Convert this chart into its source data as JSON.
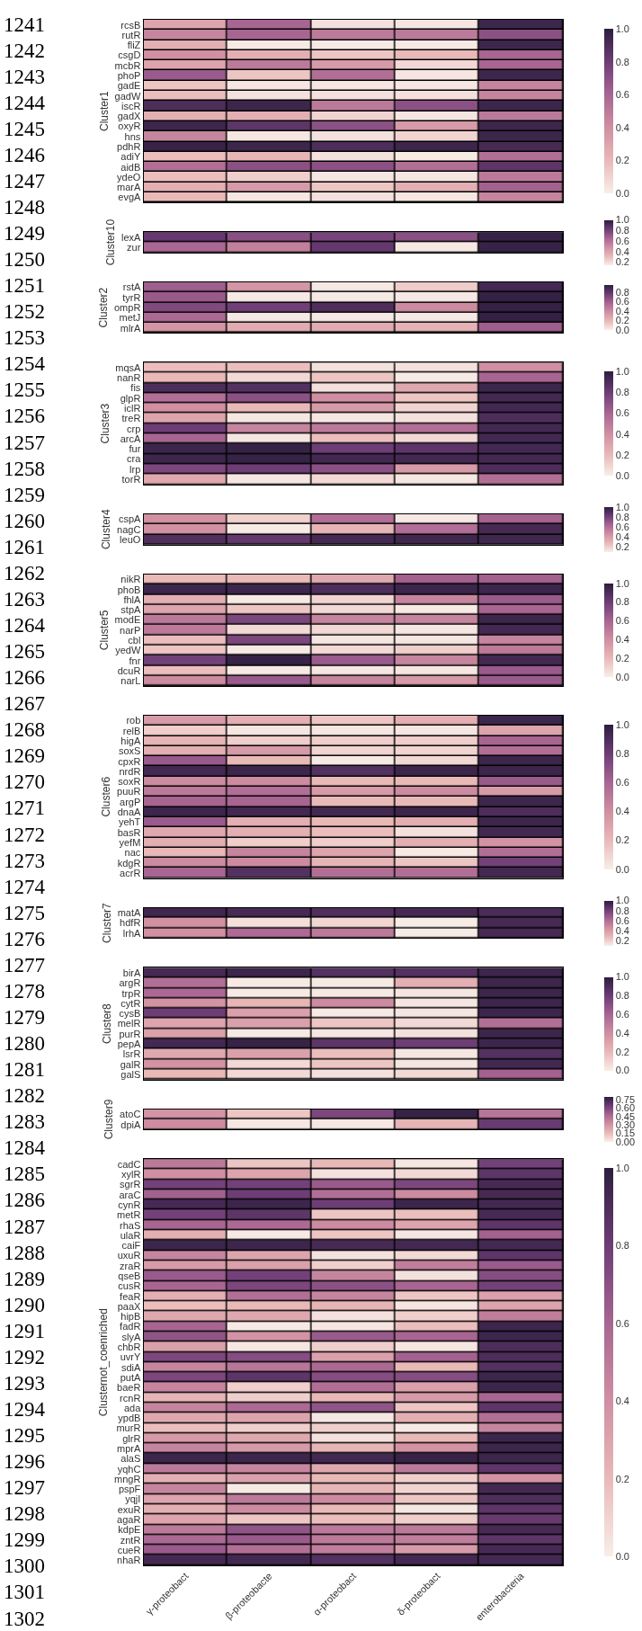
{
  "chart_data": [
    {
      "type": "heatmap",
      "ylabel": "Cluster1",
      "tick_labels": "y",
      "categories": [
        null,
        null,
        null,
        null,
        null
      ],
      "annotations": [
        "1241",
        "1242",
        "1243",
        "1244",
        "1245",
        "1246",
        "1247",
        "1248",
        "1249",
        "1250",
        "1251",
        "1252",
        "1253",
        "1254",
        "1255",
        "1256",
        "1257",
        "1258",
        "1259",
        "1260",
        "1261",
        "1262",
        "1263",
        "1264",
        "1265",
        "1266",
        "1267",
        "1268",
        "1269",
        "1270",
        "1271",
        "1272",
        "1273",
        "1274",
        "1275",
        "1276",
        "1277",
        "1278",
        "1279",
        "1280",
        "1281",
        "1282",
        "1283",
        "1284",
        "1285",
        "1286",
        "1287",
        "1288",
        "1289",
        "1290",
        "1291",
        "1292",
        "1293",
        "1294",
        "1295",
        "1296",
        "1297",
        "1298",
        "1299",
        "1300",
        "1301",
        "1302"
      ],
      "y_categories": [
        "rcsB",
        "rutR",
        "fliZ",
        "csgD",
        "mcbR",
        "phoP",
        "gadE",
        "gadW",
        "iscR",
        "gadX",
        "oxyR",
        "hns",
        "pdhR",
        "adiY",
        "aidB",
        "ydeO",
        "marA",
        "evgA"
      ],
      "cells": [
        [
          0.3,
          0.6,
          0.05,
          0.03,
          0.95
        ],
        [
          0.45,
          0.6,
          0.5,
          0.5,
          0.7
        ],
        [
          0.25,
          0.02,
          0.02,
          0.02,
          0.95
        ],
        [
          0.4,
          0.25,
          0.15,
          0.2,
          0.6
        ],
        [
          0.3,
          0.5,
          0.35,
          0.08,
          0.6
        ],
        [
          0.65,
          0.15,
          0.55,
          0.03,
          0.95
        ],
        [
          0.15,
          0.03,
          0.03,
          0.03,
          0.45
        ],
        [
          0.18,
          0.05,
          0.05,
          0.05,
          0.45
        ],
        [
          0.9,
          0.95,
          0.5,
          0.7,
          0.95
        ],
        [
          0.25,
          0.25,
          0.1,
          0.03,
          0.5
        ],
        [
          0.95,
          0.85,
          0.7,
          0.35,
          0.95
        ],
        [
          0.45,
          0.03,
          0.05,
          0.1,
          0.95
        ],
        [
          0.97,
          0.95,
          0.9,
          0.95,
          0.92
        ],
        [
          0.18,
          0.22,
          0.05,
          0.02,
          0.55
        ],
        [
          0.55,
          0.7,
          0.7,
          0.55,
          0.85
        ],
        [
          0.18,
          0.12,
          0.03,
          0.03,
          0.5
        ],
        [
          0.25,
          0.35,
          0.15,
          0.25,
          0.62
        ],
        [
          0.2,
          0.03,
          0.05,
          0.03,
          0.45
        ]
      ],
      "clim": [
        0,
        1.0
      ],
      "cticks": [
        {
          "value": 0,
          "label": "0.0"
        },
        {
          "value": 0.2,
          "label": "0.2"
        },
        {
          "value": 0.4,
          "label": "0.4"
        },
        {
          "value": 0.6,
          "label": "0.6"
        },
        {
          "value": 0.8,
          "label": "0.8"
        },
        {
          "value": 1.0,
          "label": "1.0"
        }
      ]
    },
    {
      "type": "heatmap",
      "ylabel": "Cluster10",
      "tick_labels": "y",
      "categories": [
        null,
        null,
        null,
        null,
        null
      ],
      "y_categories": [
        "lexA",
        "zur"
      ],
      "cells": [
        [
          0.85,
          0.75,
          0.8,
          0.75,
          0.97
        ],
        [
          0.65,
          0.55,
          0.85,
          0.17,
          0.97
        ]
      ],
      "clim": [
        0.15,
        1.0
      ],
      "cticks": [
        {
          "value": 0.2,
          "label": "0.2"
        },
        {
          "value": 0.4,
          "label": "0.4"
        },
        {
          "value": 0.6,
          "label": "0.6"
        },
        {
          "value": 0.8,
          "label": "0.8"
        },
        {
          "value": 1.0,
          "label": "1.0"
        }
      ]
    },
    {
      "type": "heatmap",
      "ylabel": "Cluster2",
      "tick_labels": "y",
      "categories": [
        null,
        null,
        null,
        null,
        null
      ],
      "y_categories": [
        "rstA",
        "tyrR",
        "ompR",
        "metJ",
        "mlrA"
      ],
      "cells": [
        [
          0.6,
          0.35,
          0.02,
          0.12,
          0.88
        ],
        [
          0.62,
          0.02,
          0.02,
          0.02,
          0.93
        ],
        [
          0.7,
          0.75,
          0.85,
          0.4,
          0.93
        ],
        [
          0.55,
          0.02,
          0.02,
          0.02,
          0.93
        ],
        [
          0.35,
          0.25,
          0.25,
          0.22,
          0.6
        ]
      ],
      "clim": [
        0,
        0.95
      ],
      "cticks": [
        {
          "value": 0,
          "label": "0.0"
        },
        {
          "value": 0.2,
          "label": "0.2"
        },
        {
          "value": 0.4,
          "label": "0.4"
        },
        {
          "value": 0.6,
          "label": "0.6"
        },
        {
          "value": 0.8,
          "label": "0.8"
        }
      ]
    },
    {
      "type": "heatmap",
      "ylabel": "Cluster3",
      "tick_labels": "y",
      "categories": [
        null,
        null,
        null,
        null,
        null
      ],
      "y_categories": [
        "mqsA",
        "nanR",
        "fis",
        "glpR",
        "iclR",
        "treR",
        "crp",
        "arcA",
        "fur",
        "cra",
        "lrp",
        "torR"
      ],
      "cells": [
        [
          0.18,
          0.18,
          0.05,
          0.05,
          0.4
        ],
        [
          0.2,
          0.08,
          0.15,
          0.02,
          0.6
        ],
        [
          0.9,
          0.88,
          0.05,
          0.28,
          0.95
        ],
        [
          0.55,
          0.7,
          0.4,
          0.15,
          0.93
        ],
        [
          0.4,
          0.2,
          0.35,
          0.1,
          0.93
        ],
        [
          0.3,
          0.03,
          0.03,
          0.05,
          0.9
        ],
        [
          0.8,
          0.45,
          0.5,
          0.55,
          0.93
        ],
        [
          0.6,
          0.03,
          0.18,
          0.08,
          0.93
        ],
        [
          0.95,
          0.97,
          0.8,
          0.85,
          0.93
        ],
        [
          0.95,
          0.97,
          0.93,
          0.93,
          0.93
        ],
        [
          0.75,
          0.8,
          0.7,
          0.35,
          0.9
        ],
        [
          0.28,
          0.03,
          0.08,
          0.03,
          0.55
        ]
      ],
      "clim": [
        0,
        1.0
      ],
      "cticks": [
        {
          "value": 0,
          "label": "0.0"
        },
        {
          "value": 0.2,
          "label": "0.2"
        },
        {
          "value": 0.4,
          "label": "0.4"
        },
        {
          "value": 0.6,
          "label": "0.6"
        },
        {
          "value": 0.8,
          "label": "0.8"
        },
        {
          "value": 1.0,
          "label": "1.0"
        }
      ]
    },
    {
      "type": "heatmap",
      "ylabel": "Cluster4",
      "tick_labels": "y",
      "categories": [
        null,
        null,
        null,
        null,
        null
      ],
      "y_categories": [
        "cspA",
        "nagC",
        "leuO"
      ],
      "cells": [
        [
          0.45,
          0.2,
          0.6,
          0.12,
          0.65
        ],
        [
          0.45,
          0.11,
          0.3,
          0.6,
          0.93
        ],
        [
          0.9,
          0.85,
          0.93,
          0.95,
          0.95
        ]
      ],
      "clim": [
        0.1,
        1.0
      ],
      "cticks": [
        {
          "value": 0.2,
          "label": "0.2"
        },
        {
          "value": 0.4,
          "label": "0.4"
        },
        {
          "value": 0.6,
          "label": "0.6"
        },
        {
          "value": 0.8,
          "label": "0.8"
        },
        {
          "value": 1.0,
          "label": "1.0"
        }
      ]
    },
    {
      "type": "heatmap",
      "ylabel": "Cluster5",
      "tick_labels": "y",
      "categories": [
        null,
        null,
        null,
        null,
        null
      ],
      "y_categories": [
        "nikR",
        "phoB",
        "fhlA",
        "stpA",
        "modE",
        "narP",
        "cbl",
        "yedW",
        "fnr",
        "dcuR",
        "narL"
      ],
      "cells": [
        [
          0.2,
          0.2,
          0.28,
          0.62,
          0.62
        ],
        [
          0.95,
          0.95,
          0.9,
          0.95,
          0.95
        ],
        [
          0.25,
          0.02,
          0.1,
          0.45,
          0.65
        ],
        [
          0.3,
          0.15,
          0.08,
          0.02,
          0.6
        ],
        [
          0.5,
          0.75,
          0.45,
          0.45,
          0.95
        ],
        [
          0.5,
          0.08,
          0.08,
          0.03,
          0.93
        ],
        [
          0.18,
          0.75,
          0.03,
          0.03,
          0.45
        ],
        [
          0.15,
          0.02,
          0.08,
          0.12,
          0.5
        ],
        [
          0.78,
          0.97,
          0.65,
          0.45,
          0.93
        ],
        [
          0.18,
          0.02,
          0.03,
          0.03,
          0.65
        ],
        [
          0.42,
          0.65,
          0.45,
          0.35,
          0.65
        ]
      ],
      "clim": [
        0,
        1.0
      ],
      "cticks": [
        {
          "value": 0,
          "label": "0.0"
        },
        {
          "value": 0.2,
          "label": "0.2"
        },
        {
          "value": 0.4,
          "label": "0.4"
        },
        {
          "value": 0.6,
          "label": "0.6"
        },
        {
          "value": 0.8,
          "label": "0.8"
        },
        {
          "value": 1.0,
          "label": "1.0"
        }
      ]
    },
    {
      "type": "heatmap",
      "ylabel": "Cluster6",
      "tick_labels": "y",
      "categories": [
        null,
        null,
        null,
        null,
        null
      ],
      "y_categories": [
        "rob",
        "relB",
        "higA",
        "soxS",
        "cpxR",
        "nrdR",
        "soxR",
        "puuR",
        "argP",
        "dnaA",
        "yehT",
        "basR",
        "yefM",
        "nac",
        "kdgR",
        "acrR"
      ],
      "cells": [
        [
          0.35,
          0.25,
          0.15,
          0.25,
          0.95
        ],
        [
          0.12,
          0.03,
          0.03,
          0.03,
          0.3
        ],
        [
          0.22,
          0.12,
          0.12,
          0.12,
          0.6
        ],
        [
          0.25,
          0.35,
          0.1,
          0.1,
          0.55
        ],
        [
          0.65,
          0.2,
          0.02,
          0.08,
          0.95
        ],
        [
          0.93,
          0.95,
          0.88,
          0.95,
          0.95
        ],
        [
          0.42,
          0.42,
          0.2,
          0.2,
          0.65
        ],
        [
          0.5,
          0.55,
          0.35,
          0.42,
          0.35
        ],
        [
          0.6,
          0.6,
          0.2,
          0.2,
          0.95
        ],
        [
          0.95,
          0.93,
          0.93,
          0.95,
          0.9
        ],
        [
          0.65,
          0.25,
          0.2,
          0.25,
          0.95
        ],
        [
          0.28,
          0.25,
          0.18,
          0.05,
          0.93
        ],
        [
          0.25,
          0.12,
          0.12,
          0.25,
          0.38
        ],
        [
          0.2,
          0.45,
          0.3,
          0.02,
          0.55
        ],
        [
          0.42,
          0.42,
          0.22,
          0.15,
          0.78
        ],
        [
          0.6,
          0.88,
          0.55,
          0.55,
          0.93
        ]
      ],
      "clim": [
        0,
        1.0
      ],
      "cticks": [
        {
          "value": 0,
          "label": "0.0"
        },
        {
          "value": 0.2,
          "label": "0.2"
        },
        {
          "value": 0.4,
          "label": "0.4"
        },
        {
          "value": 0.6,
          "label": "0.6"
        },
        {
          "value": 0.8,
          "label": "0.8"
        },
        {
          "value": 1.0,
          "label": "1.0"
        }
      ]
    },
    {
      "type": "heatmap",
      "ylabel": "Cluster7",
      "tick_labels": "y",
      "categories": [
        null,
        null,
        null,
        null,
        null
      ],
      "y_categories": [
        "matA",
        "hdfR",
        "lrhA"
      ],
      "cells": [
        [
          0.95,
          0.93,
          0.9,
          0.93,
          0.92
        ],
        [
          0.45,
          0.15,
          0.18,
          0.11,
          0.93
        ],
        [
          0.45,
          0.62,
          0.55,
          0.11,
          0.93
        ]
      ],
      "clim": [
        0.1,
        1.0
      ],
      "cticks": [
        {
          "value": 0.2,
          "label": "0.2"
        },
        {
          "value": 0.4,
          "label": "0.4"
        },
        {
          "value": 0.6,
          "label": "0.6"
        },
        {
          "value": 0.8,
          "label": "0.8"
        },
        {
          "value": 1.0,
          "label": "1.0"
        }
      ]
    },
    {
      "type": "heatmap",
      "ylabel": "Cluster8",
      "tick_labels": "y",
      "categories": [
        null,
        null,
        null,
        null,
        null
      ],
      "y_categories": [
        "birA",
        "argR",
        "trpR",
        "cytR",
        "cysB",
        "melR",
        "purR",
        "pepA",
        "lsrR",
        "galR",
        "galS"
      ],
      "cells": [
        [
          0.92,
          0.95,
          0.88,
          0.88,
          0.95
        ],
        [
          0.55,
          0.02,
          0.02,
          0.25,
          0.95
        ],
        [
          0.58,
          0.02,
          0.02,
          0.03,
          0.95
        ],
        [
          0.38,
          0.22,
          0.42,
          0.03,
          0.95
        ],
        [
          0.8,
          0.32,
          0.02,
          0.03,
          0.95
        ],
        [
          0.3,
          0.32,
          0.15,
          0.08,
          0.55
        ],
        [
          0.32,
          0.02,
          0.03,
          0.05,
          0.95
        ],
        [
          0.93,
          0.97,
          0.85,
          0.8,
          0.95
        ],
        [
          0.28,
          0.32,
          0.18,
          0.03,
          0.88
        ],
        [
          0.38,
          0.08,
          0.15,
          0.03,
          0.93
        ],
        [
          0.2,
          0.08,
          0.05,
          0.08,
          0.62
        ]
      ],
      "clim": [
        0,
        1.0
      ],
      "cticks": [
        {
          "value": 0,
          "label": "0.0"
        },
        {
          "value": 0.2,
          "label": "0.2"
        },
        {
          "value": 0.4,
          "label": "0.4"
        },
        {
          "value": 0.6,
          "label": "0.6"
        },
        {
          "value": 0.8,
          "label": "0.8"
        },
        {
          "value": 1.0,
          "label": "1.0"
        }
      ]
    },
    {
      "type": "heatmap",
      "ylabel": "Cluster9",
      "tick_labels": "y",
      "categories": [
        null,
        null,
        null,
        null,
        null
      ],
      "y_categories": [
        "atoC",
        "dpiA"
      ],
      "cells": [
        [
          0.3,
          0.12,
          0.6,
          0.78,
          0.42
        ],
        [
          0.33,
          0.02,
          0.02,
          0.18,
          0.65
        ]
      ],
      "clim": [
        0,
        0.8
      ],
      "cticks": [
        {
          "value": 0,
          "label": "0.00"
        },
        {
          "value": 0.15,
          "label": "0.15"
        },
        {
          "value": 0.3,
          "label": "0.30"
        },
        {
          "value": 0.45,
          "label": "0.45"
        },
        {
          "value": 0.6,
          "label": "0.60"
        },
        {
          "value": 0.75,
          "label": "0.75"
        }
      ]
    },
    {
      "type": "heatmap",
      "ylabel": "Clusternot_coenriched",
      "categories": [
        "γ-proteobact",
        "β-proteobacte",
        "α-proteobact",
        "δ-proteobact",
        "enterobacteria"
      ],
      "y_categories": [
        "cadC",
        "xylR",
        "sgrR",
        "araC",
        "cynR",
        "metR",
        "rhaS",
        "ulaR",
        "caiF",
        "uxuR",
        "zraR",
        "qseB",
        "cusR",
        "feaR",
        "paaX",
        "hipB",
        "fadR",
        "slyA",
        "chbR",
        "uvrY",
        "sdiA",
        "putA",
        "baeR",
        "rcnR",
        "ada",
        "ypdB",
        "murR",
        "glrR",
        "mprA",
        "alaS",
        "yqhC",
        "mngR",
        "pspF",
        "yqjI",
        "exuR",
        "agaR",
        "kdpE",
        "zntR",
        "cueR",
        "nhaR"
      ],
      "cells": [
        [
          0.5,
          0.15,
          0.2,
          0.03,
          0.78
        ],
        [
          0.4,
          0.3,
          0.05,
          0.08,
          0.85
        ],
        [
          0.78,
          0.78,
          0.65,
          0.75,
          0.92
        ],
        [
          0.62,
          0.8,
          0.55,
          0.42,
          0.92
        ],
        [
          0.92,
          0.95,
          0.8,
          0.95,
          0.93
        ],
        [
          0.78,
          0.85,
          0.15,
          0.18,
          0.92
        ],
        [
          0.6,
          0.58,
          0.42,
          0.3,
          0.85
        ],
        [
          0.25,
          0.02,
          0.15,
          0.03,
          0.62
        ],
        [
          0.95,
          0.95,
          0.92,
          0.93,
          0.93
        ],
        [
          0.45,
          0.3,
          0.05,
          0.08,
          0.85
        ],
        [
          0.35,
          0.32,
          0.12,
          0.48,
          0.65
        ],
        [
          0.65,
          0.78,
          0.45,
          0.05,
          0.72
        ],
        [
          0.6,
          0.75,
          0.7,
          0.6,
          0.78
        ],
        [
          0.25,
          0.55,
          0.45,
          0.15,
          0.32
        ],
        [
          0.18,
          0.2,
          0.22,
          0.03,
          0.3
        ],
        [
          0.28,
          0.28,
          0.05,
          0.12,
          0.48
        ],
        [
          0.6,
          0.02,
          0.03,
          0.18,
          0.95
        ],
        [
          0.68,
          0.38,
          0.65,
          0.6,
          0.95
        ],
        [
          0.32,
          0.03,
          0.12,
          0.03,
          0.9
        ],
        [
          0.75,
          0.72,
          0.32,
          0.62,
          0.9
        ],
        [
          0.45,
          0.52,
          0.58,
          0.2,
          0.88
        ],
        [
          0.75,
          0.85,
          0.72,
          0.72,
          0.95
        ],
        [
          0.45,
          0.12,
          0.55,
          0.32,
          0.95
        ],
        [
          0.22,
          0.12,
          0.2,
          0.35,
          0.6
        ],
        [
          0.45,
          0.58,
          0.68,
          0.15,
          0.85
        ],
        [
          0.28,
          0.3,
          0.03,
          0.25,
          0.55
        ],
        [
          0.18,
          0.12,
          0.12,
          0.02,
          0.45
        ],
        [
          0.35,
          0.28,
          0.05,
          0.2,
          0.95
        ],
        [
          0.45,
          0.35,
          0.22,
          0.38,
          0.95
        ],
        [
          0.95,
          0.95,
          0.93,
          0.97,
          0.95
        ],
        [
          0.5,
          0.45,
          0.28,
          0.5,
          0.85
        ],
        [
          0.25,
          0.32,
          0.2,
          0.12,
          0.38
        ],
        [
          0.45,
          0.02,
          0.22,
          0.1,
          0.93
        ],
        [
          0.3,
          0.5,
          0.42,
          0.15,
          0.9
        ],
        [
          0.25,
          0.42,
          0.2,
          0.03,
          0.85
        ],
        [
          0.3,
          0.15,
          0.18,
          0.12,
          0.82
        ],
        [
          0.5,
          0.68,
          0.5,
          0.5,
          0.92
        ],
        [
          0.58,
          0.65,
          0.5,
          0.48,
          0.85
        ],
        [
          0.65,
          0.55,
          0.48,
          0.35,
          0.92
        ],
        [
          0.93,
          0.93,
          0.88,
          0.93,
          0.93
        ]
      ],
      "clim": [
        0,
        1.0
      ],
      "cticks": [
        {
          "value": 0,
          "label": "0.0"
        },
        {
          "value": 0.2,
          "label": "0.2"
        },
        {
          "value": 0.4,
          "label": "0.4"
        },
        {
          "value": 0.6,
          "label": "0.6"
        },
        {
          "value": 0.8,
          "label": "0.8"
        },
        {
          "value": 1.0,
          "label": "1.0"
        }
      ]
    }
  ]
}
